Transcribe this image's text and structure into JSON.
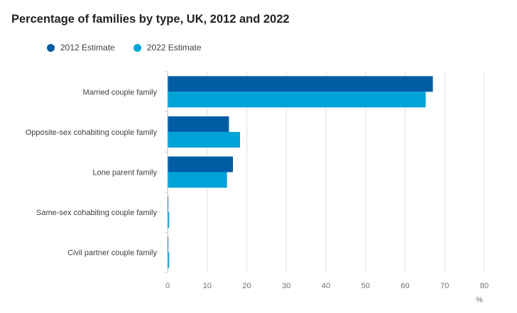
{
  "chart_data": {
    "type": "bar",
    "orientation": "horizontal",
    "title": "Percentage of families by type, UK, 2012 and 2022",
    "xlabel": "%",
    "ylabel": "",
    "xlim": [
      0,
      80
    ],
    "xticks": [
      0,
      10,
      20,
      30,
      40,
      50,
      60,
      70,
      80
    ],
    "grid": true,
    "legend_position": "top-left",
    "categories": [
      "Married couple family",
      "Opposite-sex cohabiting couple family",
      "Lone parent family",
      "Same-sex cohabiting couple family",
      "Civil partner couple family"
    ],
    "series": [
      {
        "name": "2012 Estimate",
        "color": "#005da3",
        "values": [
          67.0,
          15.5,
          16.5,
          0.2,
          0.2
        ]
      },
      {
        "name": "2022 Estimate",
        "color": "#00a3d8",
        "values": [
          65.2,
          18.3,
          15.0,
          0.4,
          0.4
        ]
      }
    ]
  }
}
